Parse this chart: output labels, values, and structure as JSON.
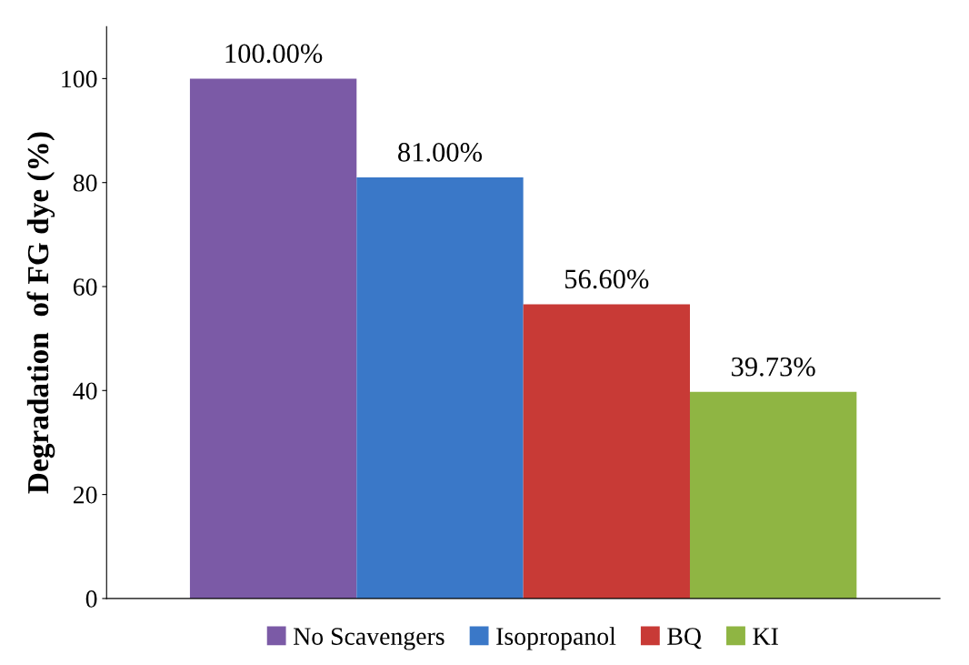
{
  "chart_data": {
    "type": "bar",
    "ylabel": "Degradation  of FG dye (%)",
    "categories": [
      null
    ],
    "series": [
      {
        "name": "No Scavengers",
        "color": "#7b5aa6",
        "values": [
          100
        ],
        "value_labels": [
          "100.00%"
        ]
      },
      {
        "name": "Isopropanol",
        "color": "#3a78c8",
        "values": [
          81
        ],
        "value_labels": [
          "81.00%"
        ]
      },
      {
        "name": "BQ",
        "color": "#c83a36",
        "values": [
          56.6
        ],
        "value_labels": [
          "56.60%"
        ]
      },
      {
        "name": "KI",
        "color": "#8fb543",
        "values": [
          39.73
        ],
        "value_labels": [
          "39.73%"
        ]
      }
    ],
    "ylim": [
      0,
      110
    ],
    "yticks": [
      0,
      20,
      40,
      60,
      80,
      100
    ],
    "grid": false,
    "legend": "bottom"
  }
}
